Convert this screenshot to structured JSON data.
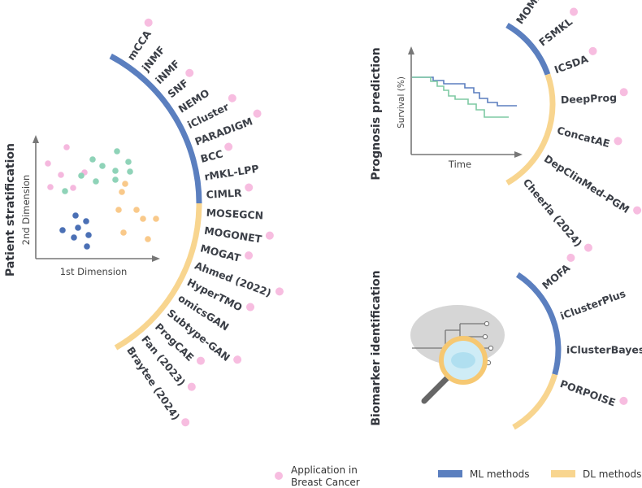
{
  "colors": {
    "ml": "#5b7fbf",
    "dl": "#f8d58f",
    "breast_cancer": "#f7bde0",
    "green": "#8fd3b8",
    "orange": "#f9c98a",
    "blue": "#4b70b5",
    "pink": "#f5b8de",
    "survival_blue": "#5b7fbf",
    "survival_green": "#7fcaa3"
  },
  "stratification": {
    "title": "Patient stratification",
    "x_label": "1st Dimension",
    "y_label": "2nd Dimension",
    "methods": [
      {
        "name": "mCCA",
        "type": "ml",
        "bc": true
      },
      {
        "name": "jNMF",
        "type": "ml",
        "bc": false
      },
      {
        "name": "iNMF",
        "type": "ml",
        "bc": false
      },
      {
        "name": "SNF",
        "type": "ml",
        "bc": true
      },
      {
        "name": "NEMO",
        "type": "ml",
        "bc": false
      },
      {
        "name": "iCluster",
        "type": "ml",
        "bc": true
      },
      {
        "name": "PARADIGM",
        "type": "ml",
        "bc": true
      },
      {
        "name": "BCC",
        "type": "ml",
        "bc": true
      },
      {
        "name": "rMKL-LPP",
        "type": "ml",
        "bc": false
      },
      {
        "name": "CIMLR",
        "type": "ml",
        "bc": true
      },
      {
        "name": "MOSEGCN",
        "type": "dl",
        "bc": false
      },
      {
        "name": "MOGONET",
        "type": "dl",
        "bc": true
      },
      {
        "name": "MOGAT",
        "type": "dl",
        "bc": true
      },
      {
        "name": "Ahmed (2022)",
        "type": "dl",
        "bc": true
      },
      {
        "name": "HyperTMO",
        "type": "dl",
        "bc": true
      },
      {
        "name": "omicsGAN",
        "type": "dl",
        "bc": false
      },
      {
        "name": "Subtype-GAN",
        "type": "dl",
        "bc": true
      },
      {
        "name": "ProgCAE",
        "type": "dl",
        "bc": true
      },
      {
        "name": "Fan (2023)",
        "type": "dl",
        "bc": true
      },
      {
        "name": "Braytee (2024)",
        "type": "dl",
        "bc": true
      }
    ]
  },
  "prognosis": {
    "title": "Prognosis prediction",
    "x_label": "Time",
    "y_label": "Survival (%)",
    "methods": [
      {
        "name": "MOMLIN",
        "type": "ml",
        "bc": true
      },
      {
        "name": "FSMKL",
        "type": "ml",
        "bc": true
      },
      {
        "name": "ICSDA",
        "type": "dl",
        "bc": true
      },
      {
        "name": "DeepProg",
        "type": "dl",
        "bc": true
      },
      {
        "name": "ConcatAE",
        "type": "dl",
        "bc": true
      },
      {
        "name": "DepClinMed-PGM",
        "type": "dl",
        "bc": true
      },
      {
        "name": "Cheerla (2024)",
        "type": "dl",
        "bc": true
      }
    ]
  },
  "biomarker": {
    "title": "Biomarker identification",
    "methods": [
      {
        "name": "MOFA",
        "type": "ml",
        "bc": true
      },
      {
        "name": "iClusterPlus",
        "type": "ml",
        "bc": false
      },
      {
        "name": "iClusterBayes",
        "type": "ml",
        "bc": false
      },
      {
        "name": "PORPOISE",
        "type": "dl",
        "bc": true
      }
    ]
  },
  "legend": {
    "bc_line1": "Application in",
    "bc_line2": "Breast Cancer",
    "ml": "ML methods",
    "dl": "DL methods"
  }
}
